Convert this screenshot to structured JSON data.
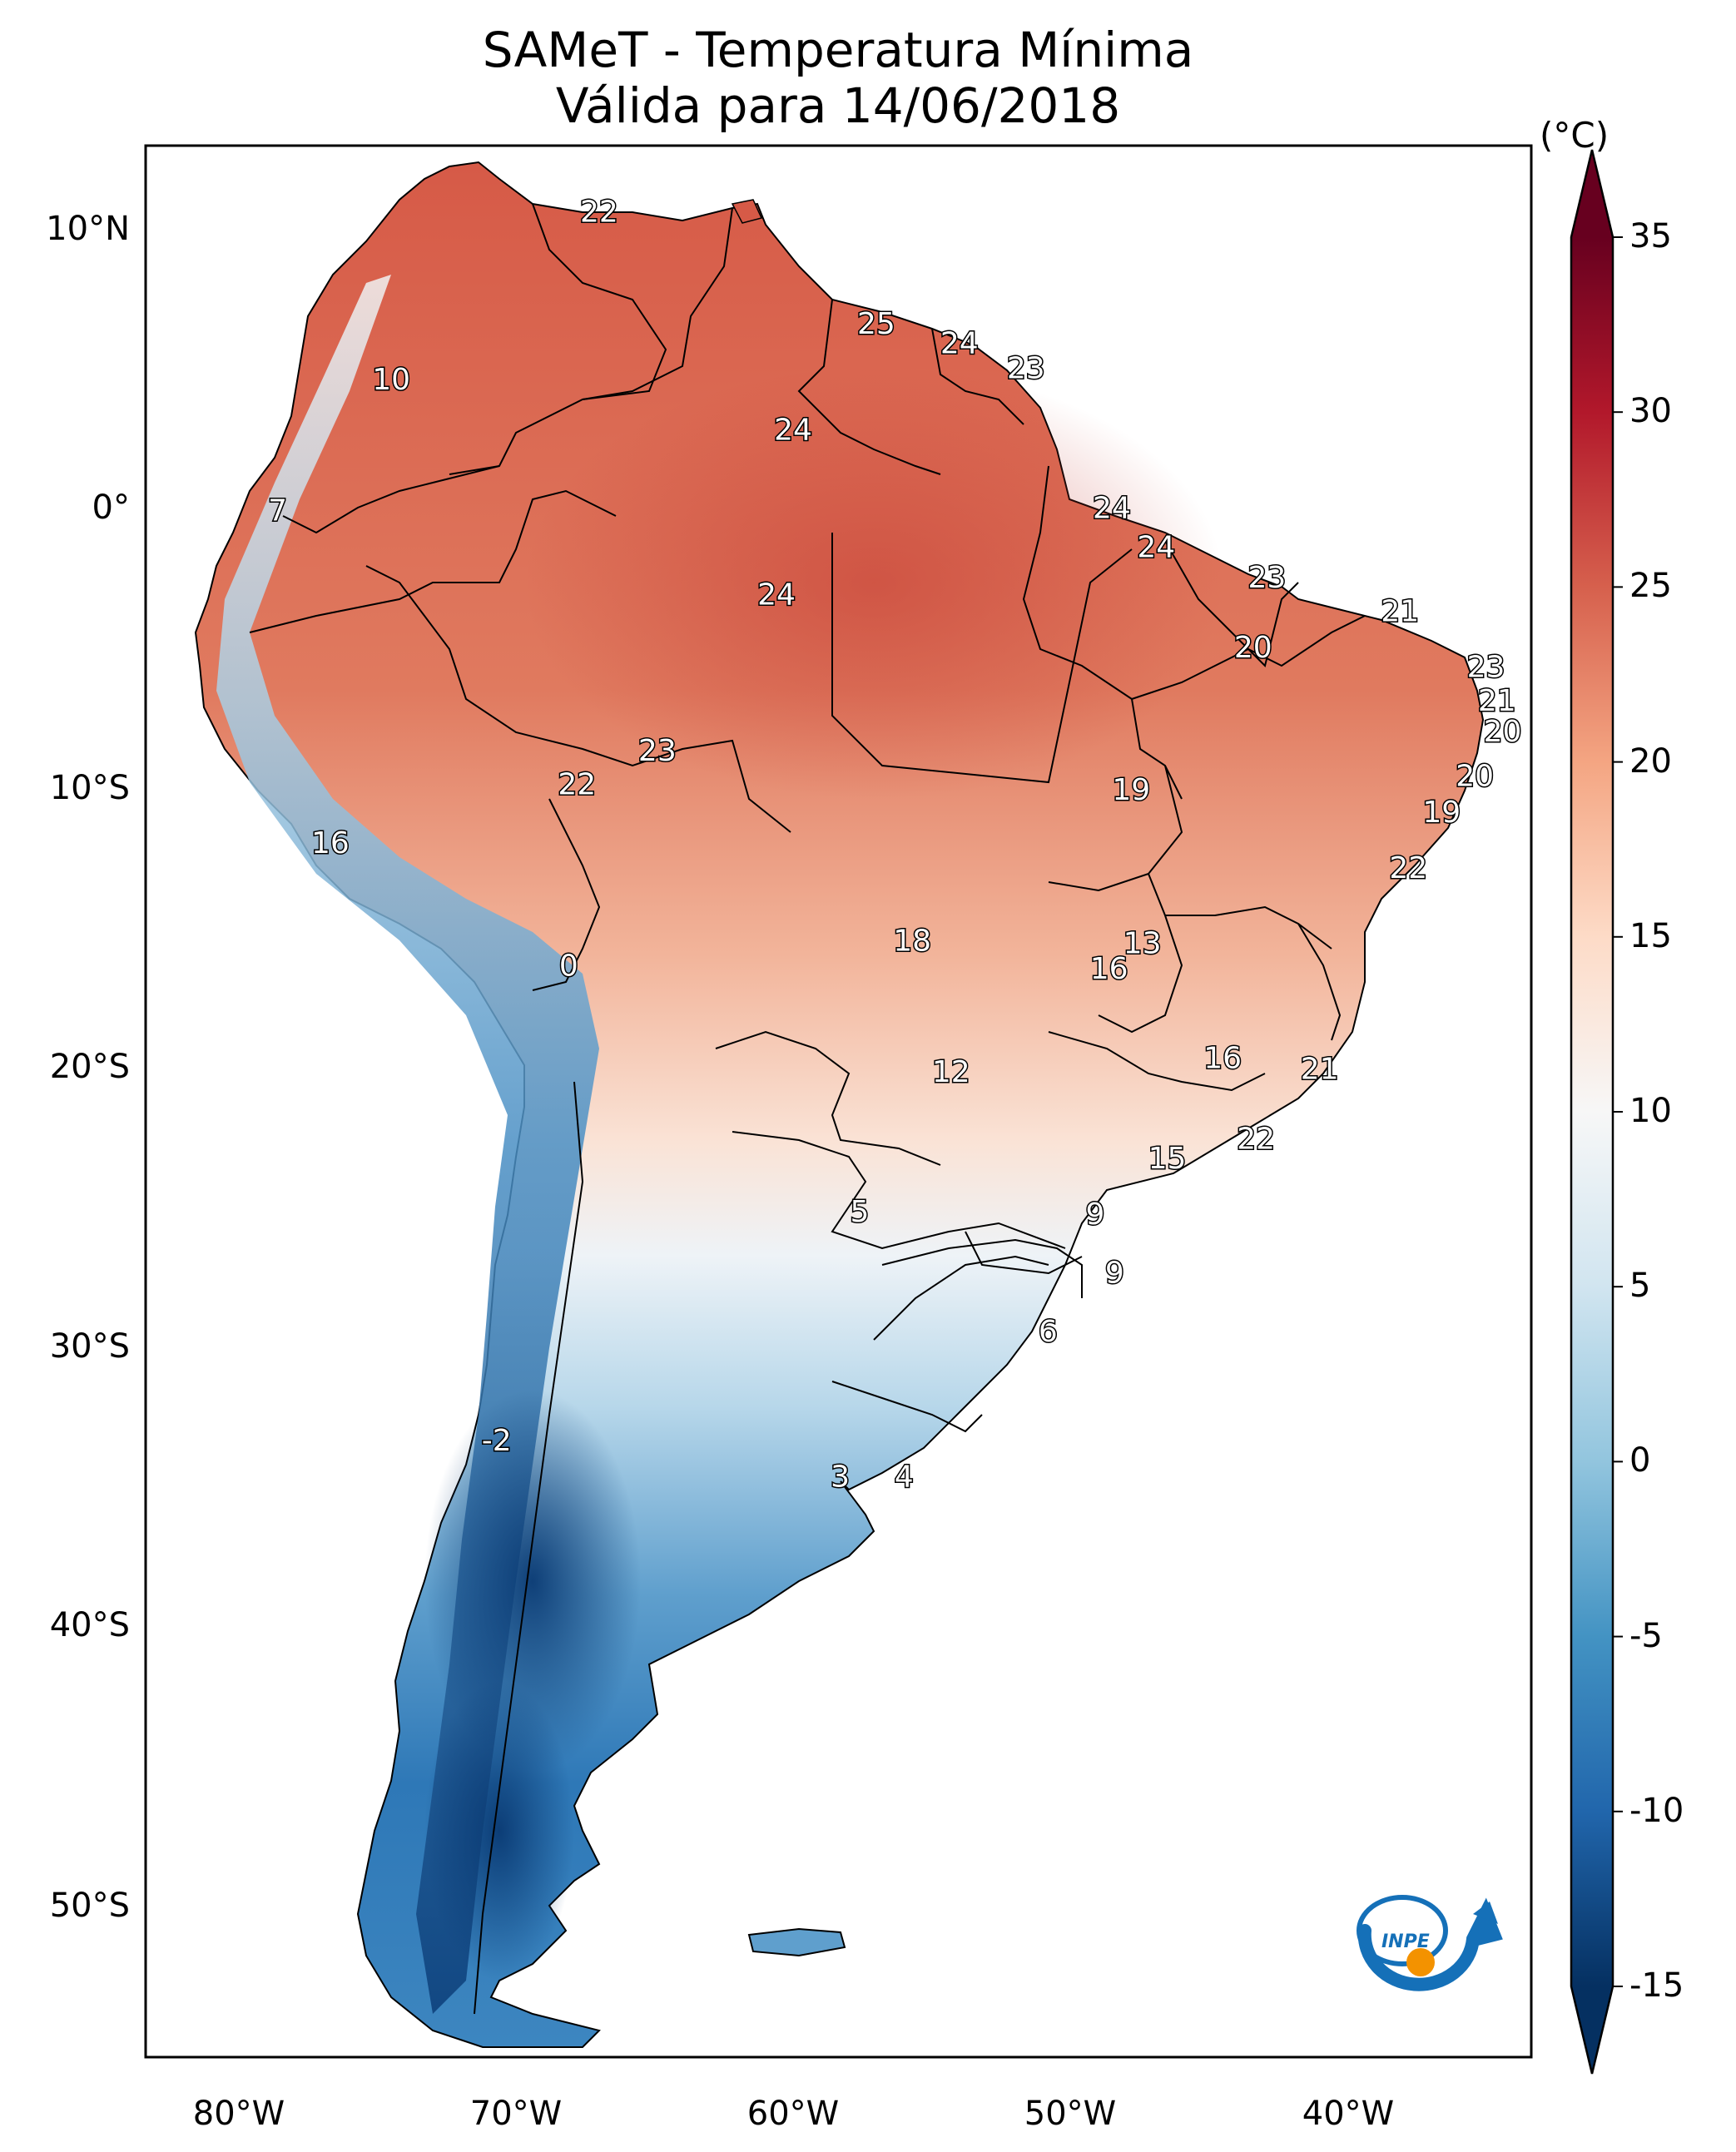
{
  "title": "SAMeT - Temperatura Mínima",
  "subtitle": "Válida para 14/06/2018",
  "axes": {
    "lat_ticks": [
      "10°N",
      "0°",
      "10°S",
      "20°S",
      "30°S",
      "40°S",
      "50°S"
    ],
    "lon_ticks": [
      "80°W",
      "70°W",
      "60°W",
      "50°W",
      "40°W"
    ]
  },
  "colorbar": {
    "unit": "(°C)",
    "ticks": [
      "35",
      "30",
      "25",
      "20",
      "15",
      "10",
      "5",
      "0",
      "-5",
      "-10",
      "-15"
    ],
    "range": [
      -15,
      35
    ],
    "extend": "both",
    "colormap": "RdBu_r",
    "colors": [
      "#053061",
      "#2166ac",
      "#4393c3",
      "#92c5de",
      "#d1e5f0",
      "#f7f7f7",
      "#fddbc7",
      "#f4a582",
      "#d6604d",
      "#b2182b",
      "#67001f"
    ]
  },
  "logo": {
    "text": "INPE",
    "colors": {
      "blue": "#1570b8",
      "orange": "#f39200"
    }
  },
  "chart_data": {
    "type": "heatmap",
    "title": "SAMeT - Temperatura Mínima",
    "subtitle": "Válida para 14/06/2018",
    "variable_unit": "°C",
    "lon_range": [
      -83,
      -33
    ],
    "lat_range": [
      -56,
      13
    ],
    "point_labels": [
      {
        "value": 22,
        "lon": -67,
        "lat": 10.5
      },
      {
        "value": 25,
        "lon": -57,
        "lat": 6.5
      },
      {
        "value": 24,
        "lon": -54,
        "lat": 5.8
      },
      {
        "value": 23,
        "lon": -51.6,
        "lat": 4.9
      },
      {
        "value": 10,
        "lon": -74.5,
        "lat": 4.5
      },
      {
        "value": 24,
        "lon": -60,
        "lat": 2.7
      },
      {
        "value": 7,
        "lon": -78.6,
        "lat": -0.2
      },
      {
        "value": 24,
        "lon": -48.5,
        "lat": -0.1
      },
      {
        "value": 24,
        "lon": -46.9,
        "lat": -1.5
      },
      {
        "value": 24,
        "lon": -60.6,
        "lat": -3.2
      },
      {
        "value": 23,
        "lon": -42.9,
        "lat": -2.6
      },
      {
        "value": 21,
        "lon": -38.1,
        "lat": -3.8
      },
      {
        "value": 20,
        "lon": -43.4,
        "lat": -5.1
      },
      {
        "value": 23,
        "lon": -35,
        "lat": -5.8
      },
      {
        "value": 21,
        "lon": -34.6,
        "lat": -7
      },
      {
        "value": 20,
        "lon": -34.4,
        "lat": -8.1
      },
      {
        "value": 23,
        "lon": -64.9,
        "lat": -8.8
      },
      {
        "value": 20,
        "lon": -35.4,
        "lat": -9.7
      },
      {
        "value": 22,
        "lon": -67.8,
        "lat": -10
      },
      {
        "value": 19,
        "lon": -47.8,
        "lat": -10.2
      },
      {
        "value": 19,
        "lon": -36.6,
        "lat": -11
      },
      {
        "value": 16,
        "lon": -76.7,
        "lat": -12.1
      },
      {
        "value": 22,
        "lon": -37.8,
        "lat": -13
      },
      {
        "value": 18,
        "lon": -55.7,
        "lat": -15.6
      },
      {
        "value": 13,
        "lon": -47.4,
        "lat": -15.7
      },
      {
        "value": 16,
        "lon": -48.6,
        "lat": -16.6
      },
      {
        "value": 0,
        "lon": -68.1,
        "lat": -16.5
      },
      {
        "value": 12,
        "lon": -54.3,
        "lat": -20.3
      },
      {
        "value": 16,
        "lon": -44.5,
        "lat": -19.8
      },
      {
        "value": 21,
        "lon": -41,
        "lat": -20.2
      },
      {
        "value": 22,
        "lon": -43.3,
        "lat": -22.7
      },
      {
        "value": 15,
        "lon": -46.5,
        "lat": -23.4
      },
      {
        "value": 5,
        "lon": -57.6,
        "lat": -25.3
      },
      {
        "value": 9,
        "lon": -49.1,
        "lat": -25.4
      },
      {
        "value": 9,
        "lon": -48.4,
        "lat": -27.5
      },
      {
        "value": 6,
        "lon": -50.8,
        "lat": -29.6
      },
      {
        "value": -2,
        "lon": -70.7,
        "lat": -33.5
      },
      {
        "value": 3,
        "lon": -58.3,
        "lat": -34.8
      },
      {
        "value": 4,
        "lon": -56,
        "lat": -34.8
      }
    ]
  }
}
